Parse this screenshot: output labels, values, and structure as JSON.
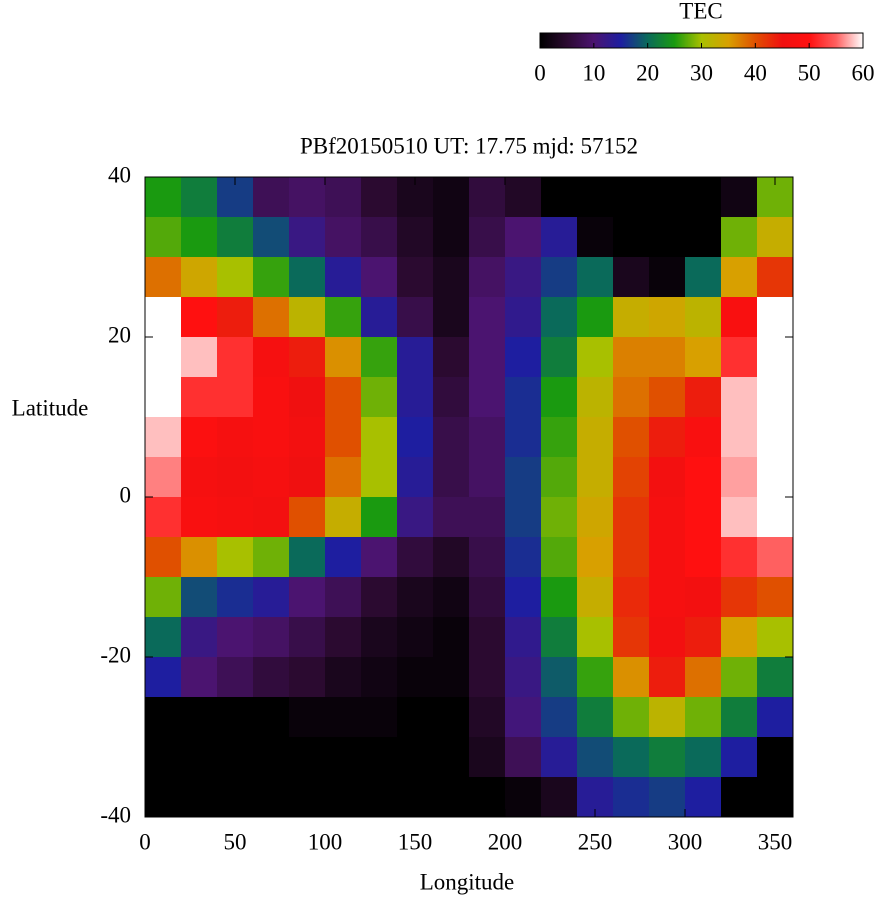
{
  "chart_data": {
    "type": "heatmap",
    "title": "PBf20150510  UT: 17.75  mjd: 57152",
    "xlabel": "Longitude",
    "ylabel": "Latitude",
    "xlim": [
      0,
      360
    ],
    "xticks": [
      0,
      50,
      100,
      150,
      200,
      250,
      300,
      350
    ],
    "ylim": [
      -40,
      40
    ],
    "yticks": [
      -40,
      -20,
      0,
      20,
      40
    ],
    "x": [
      10,
      30,
      50,
      70,
      90,
      110,
      130,
      150,
      170,
      190,
      210,
      230,
      250,
      270,
      290,
      310,
      330,
      350
    ],
    "y": [
      37.5,
      32.5,
      27.5,
      22.5,
      17.5,
      12.5,
      7.5,
      2.5,
      -2.5,
      -7.5,
      -12.5,
      -17.5,
      -22.5,
      -27.5,
      -32.5,
      -37.5
    ],
    "z": [
      [
        25,
        22,
        17,
        8,
        9,
        8,
        5,
        3,
        2,
        6,
        4,
        0,
        0,
        0,
        0,
        0,
        2,
        28
      ],
      [
        27,
        25,
        22,
        18,
        12,
        9,
        7,
        4,
        2,
        7,
        10,
        14,
        1,
        0,
        0,
        0,
        28,
        33
      ],
      [
        38,
        34,
        30,
        26,
        20,
        14,
        10,
        5,
        3,
        9,
        12,
        17,
        20,
        3,
        1,
        20,
        35,
        42
      ],
      [
        60,
        50,
        44,
        38,
        32,
        26,
        14,
        7,
        3,
        10,
        13,
        20,
        25,
        33,
        34,
        32,
        48,
        60
      ],
      [
        60,
        58,
        52,
        47,
        44,
        36,
        26,
        14,
        5,
        10,
        15,
        22,
        30,
        37,
        37,
        35,
        52,
        60
      ],
      [
        60,
        52,
        52,
        48,
        45,
        40,
        28,
        14,
        6,
        10,
        16,
        25,
        32,
        38,
        40,
        44,
        58,
        60
      ],
      [
        58,
        49,
        47,
        48,
        46,
        40,
        30,
        15,
        7,
        9,
        16,
        26,
        33,
        40,
        44,
        48,
        58,
        60
      ],
      [
        56,
        47,
        46,
        47,
        45,
        38,
        30,
        14,
        7,
        9,
        17,
        27,
        33,
        41,
        46,
        50,
        57,
        60
      ],
      [
        52,
        48,
        47,
        46,
        40,
        33,
        25,
        12,
        8,
        8,
        17,
        28,
        34,
        42,
        47,
        50,
        58,
        60
      ],
      [
        40,
        36,
        30,
        28,
        20,
        15,
        10,
        6,
        4,
        7,
        16,
        27,
        35,
        42,
        47,
        50,
        52,
        55
      ],
      [
        28,
        18,
        16,
        14,
        10,
        8,
        5,
        3,
        2,
        6,
        15,
        25,
        33,
        43,
        47,
        46,
        42,
        40
      ],
      [
        20,
        12,
        10,
        9,
        7,
        5,
        3,
        2,
        1,
        5,
        13,
        22,
        30,
        42,
        46,
        44,
        35,
        30
      ],
      [
        15,
        10,
        8,
        6,
        5,
        3,
        2,
        1,
        1,
        5,
        12,
        19,
        26,
        36,
        44,
        38,
        28,
        22
      ],
      [
        0,
        0,
        0,
        0,
        1,
        1,
        1,
        0,
        0,
        4,
        11,
        17,
        22,
        28,
        32,
        28,
        22,
        15
      ],
      [
        0,
        0,
        0,
        0,
        0,
        0,
        0,
        0,
        0,
        3,
        8,
        14,
        18,
        20,
        22,
        20,
        15,
        0
      ],
      [
        0,
        0,
        0,
        0,
        0,
        0,
        0,
        0,
        0,
        0,
        1,
        3,
        14,
        16,
        17,
        15,
        0,
        0
      ]
    ],
    "colorbar": {
      "label": "TEC",
      "lim": [
        0,
        60
      ],
      "ticks": [
        0,
        10,
        20,
        30,
        40,
        50,
        60
      ],
      "colors": [
        "#000000",
        "#2b0a30",
        "#4b1470",
        "#1e1ea0",
        "#0a6a5a",
        "#1a9a10",
        "#a8c000",
        "#d8a000",
        "#e05000",
        "#f01010",
        "#ff1010",
        "#ff6060",
        "#ffffff"
      ]
    }
  }
}
